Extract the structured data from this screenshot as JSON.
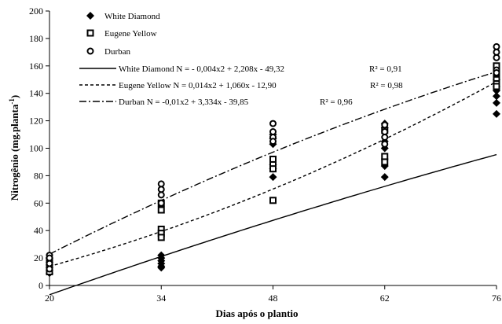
{
  "chart_data": {
    "type": "scatter",
    "xlabel": "Dias após o plantio",
    "ylabel_main": "Nitrogênio (mg.planta",
    "ylabel_sup": "-1",
    "ylabel_end": ")",
    "x_ticks": [
      20,
      34,
      48,
      62,
      76
    ],
    "y_ticks": [
      0,
      20,
      40,
      60,
      80,
      100,
      120,
      140,
      160,
      180,
      200
    ],
    "xlim": [
      20,
      76
    ],
    "ylim": [
      0,
      200
    ],
    "grid": false,
    "legend_position": "top-left",
    "series": [
      {
        "name": "White Diamond",
        "marker": "diamond",
        "points": [
          [
            20,
            20
          ],
          [
            20,
            17
          ],
          [
            20,
            15
          ],
          [
            20,
            13
          ],
          [
            20,
            11
          ],
          [
            20,
            9
          ],
          [
            34,
            22
          ],
          [
            34,
            20
          ],
          [
            34,
            18
          ],
          [
            34,
            16
          ],
          [
            34,
            14
          ],
          [
            34,
            13
          ],
          [
            48,
            110
          ],
          [
            48,
            107
          ],
          [
            48,
            103
          ],
          [
            48,
            88
          ],
          [
            48,
            85
          ],
          [
            48,
            79
          ],
          [
            62,
            118
          ],
          [
            62,
            115
          ],
          [
            62,
            105
          ],
          [
            62,
            100
          ],
          [
            62,
            87
          ],
          [
            62,
            79
          ],
          [
            76,
            150
          ],
          [
            76,
            145
          ],
          [
            76,
            142
          ],
          [
            76,
            138
          ],
          [
            76,
            133
          ],
          [
            76,
            125
          ]
        ],
        "equation": "White Diamond  N = - 0,004x2 + 2,208x - 49,32",
        "r2": "R² = 0,91",
        "line_style": "solid",
        "coef": [
          -0.004,
          2.208,
          -49.32
        ]
      },
      {
        "name": "Eugene Yellow",
        "marker": "square",
        "points": [
          [
            20,
            18
          ],
          [
            20,
            15
          ],
          [
            20,
            12
          ],
          [
            20,
            10
          ],
          [
            34,
            60
          ],
          [
            34,
            55
          ],
          [
            34,
            41
          ],
          [
            34,
            38
          ],
          [
            34,
            35
          ],
          [
            48,
            92
          ],
          [
            48,
            88
          ],
          [
            48,
            85
          ],
          [
            48,
            62
          ],
          [
            62,
            113
          ],
          [
            62,
            94
          ],
          [
            62,
            90
          ],
          [
            76,
            160
          ],
          [
            76,
            155
          ],
          [
            76,
            150
          ],
          [
            76,
            147
          ],
          [
            76,
            145
          ]
        ],
        "equation": "Eugene Yellow  N = 0,014x2 + 1,060x - 12,90",
        "r2": "R² = 0,98",
        "line_style": "dashed",
        "coef": [
          0.014,
          1.06,
          -12.9
        ]
      },
      {
        "name": "Durban",
        "marker": "circle",
        "points": [
          [
            20,
            22
          ],
          [
            20,
            20
          ],
          [
            20,
            16
          ],
          [
            20,
            12
          ],
          [
            34,
            74
          ],
          [
            34,
            70
          ],
          [
            34,
            66
          ],
          [
            34,
            60
          ],
          [
            48,
            118
          ],
          [
            48,
            112
          ],
          [
            48,
            108
          ],
          [
            48,
            105
          ],
          [
            62,
            117
          ],
          [
            62,
            112
          ],
          [
            62,
            108
          ],
          [
            62,
            103
          ],
          [
            76,
            174
          ],
          [
            76,
            170
          ],
          [
            76,
            166
          ],
          [
            76,
            157
          ],
          [
            76,
            155
          ]
        ],
        "equation": "Durban  N = -0,01x2 + 3,334x - 39,85",
        "r2": "R² = 0,96",
        "line_style": "dashdot",
        "coef": [
          -0.01,
          3.334,
          -39.85
        ]
      }
    ]
  }
}
